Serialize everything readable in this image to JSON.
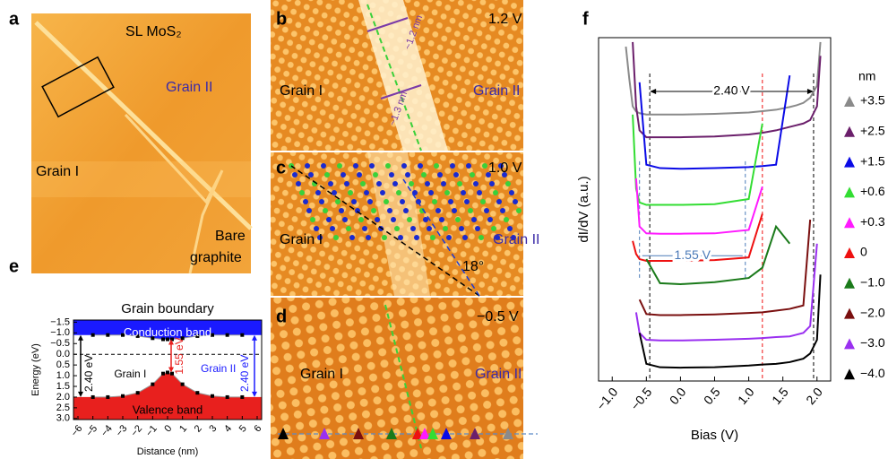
{
  "panels": {
    "a": {
      "label": "a",
      "material": "SL MoS₂",
      "grain2": "Grain II",
      "grain1": "Grain I",
      "bare": [
        "Bare",
        "graphite"
      ]
    },
    "b": {
      "label": "b",
      "bias": "1.2 V",
      "grain1": "Grain I",
      "grain2": "Grain II",
      "width1": "~1.2 nm",
      "width2": "~1.3 nm"
    },
    "c": {
      "label": "c",
      "bias": "1.0 V",
      "grain1": "Grain I",
      "grain2": "Grain II",
      "angle": "18°"
    },
    "d": {
      "label": "d",
      "bias": "−0.5 V",
      "grain1": "Grain I",
      "grain2": "Grain II"
    },
    "e": {
      "label": "e"
    },
    "f": {
      "label": "f"
    }
  },
  "chart_data": [
    {
      "type": "area",
      "title": "Grain boundary",
      "xlabel": "Distance (nm)",
      "ylabel": "Energy (eV)",
      "x": [
        -5,
        -4,
        -3,
        -2,
        -1,
        -0.3,
        0,
        0.3,
        1,
        2,
        3,
        4,
        5
      ],
      "series": [
        {
          "name": "Conduction band",
          "color": "#1a1aff",
          "values": [
            -0.9,
            -0.9,
            -0.9,
            -0.85,
            -0.75,
            -0.7,
            -0.7,
            -0.7,
            -0.75,
            -0.85,
            -0.9,
            -0.9,
            -0.9
          ]
        },
        {
          "name": "Valence band",
          "color": "#e8201e",
          "values": [
            2.0,
            2.0,
            1.95,
            1.8,
            1.4,
            0.9,
            0.85,
            0.9,
            1.4,
            1.8,
            1.95,
            2.0,
            2.0
          ]
        }
      ],
      "xlim": [
        -6.3,
        6.3
      ],
      "ylim": [
        -1.6,
        3.05
      ],
      "y_inverted": true,
      "xticks": [
        {
          "value": -6,
          "label": "−6"
        },
        {
          "value": -5,
          "label": "−5"
        },
        {
          "value": -4,
          "label": "−4"
        },
        {
          "value": -3,
          "label": "−3"
        },
        {
          "value": -2,
          "label": "−2"
        },
        {
          "value": -1,
          "label": "−1"
        },
        0,
        1,
        2,
        3,
        4,
        5,
        6
      ],
      "yticks": [
        {
          "value": -1.5,
          "label": "−1.5"
        },
        {
          "value": -1.0,
          "label": "−1.0"
        },
        {
          "value": -0.5,
          "label": "−0.5"
        },
        {
          "value": 0,
          "label": "0.0"
        },
        0.5,
        {
          "value": 1.0,
          "label": "1.0"
        },
        1.5,
        {
          "value": 2.0,
          "label": "2.0"
        },
        2.5,
        {
          "value": 3.0,
          "label": "3.0"
        }
      ],
      "hline": 0,
      "annotations": {
        "grain1": "Grain I",
        "grain2": "Grain II",
        "gap": "2.40 eV",
        "gap_boundary": "1.55 eV"
      }
    },
    {
      "type": "line",
      "xlabel": "Bias (V)",
      "ylabel": "dI/dV (a.u.)",
      "legend_title": "nm",
      "x": [
        -0.8,
        -0.75,
        -0.7,
        -0.65,
        -0.6,
        -0.5,
        -0.3,
        0,
        0.5,
        1.0,
        1.2,
        1.4,
        1.6,
        1.7,
        1.8,
        1.9,
        2.0,
        2.05
      ],
      "series": [
        {
          "name": "+3.5",
          "color": "#8a8a8a",
          "values": [
            97.4,
            88,
            80,
            78.5,
            78,
            77.6,
            77.6,
            77.6,
            77.8,
            78.2,
            78.6,
            79,
            79.8,
            80.3,
            81,
            82.5,
            86,
            98.7
          ]
        },
        {
          "name": "+2.5",
          "color": "#6b1f6b",
          "values": [
            null,
            null,
            98.7,
            80,
            73,
            71,
            71,
            71,
            71.2,
            71.8,
            72.3,
            73,
            74,
            74.5,
            75,
            76,
            80,
            94.7
          ]
        },
        {
          "name": "+1.5",
          "color": "#0a0ae6",
          "values": [
            null,
            null,
            null,
            null,
            87,
            63,
            62,
            61.8,
            62,
            62.3,
            62.6,
            63,
            89,
            null,
            null,
            null,
            null,
            null
          ]
        },
        {
          "name": "+0.6",
          "color": "#33dd33",
          "values": [
            null,
            null,
            77.6,
            56,
            52,
            51.3,
            51.3,
            51.3,
            51.5,
            53,
            75,
            null,
            null,
            null,
            null,
            null,
            null,
            null
          ]
        },
        {
          "name": "+0.3",
          "color": "#ff1aff",
          "values": [
            null,
            null,
            null,
            59,
            45,
            43,
            42.9,
            42.9,
            43,
            44,
            56.6,
            null,
            null,
            null,
            null,
            null,
            null,
            null
          ]
        },
        {
          "name": "0",
          "color": "#ee1111",
          "values": [
            null,
            null,
            40.8,
            37,
            35.5,
            35,
            35,
            35,
            35.2,
            36,
            48.7,
            null,
            null,
            null,
            null,
            null,
            null,
            null
          ]
        },
        {
          "name": "−1.0",
          "color": "#1a7a1a",
          "values": [
            null,
            null,
            null,
            null,
            null,
            35.5,
            28.5,
            28.2,
            28.8,
            30,
            33,
            45,
            40,
            null,
            null,
            null,
            null,
            null
          ]
        },
        {
          "name": "−2.0",
          "color": "#7a0f0f",
          "values": [
            null,
            null,
            null,
            null,
            23.7,
            19.5,
            19.2,
            19.2,
            19.4,
            19.8,
            20,
            20.5,
            21,
            21.5,
            22,
            47,
            null,
            null
          ]
        },
        {
          "name": "−3.0",
          "color": "#9a30f0",
          "values": [
            null,
            null,
            null,
            20,
            14,
            12,
            11.8,
            11.8,
            12,
            12.3,
            12.5,
            12.8,
            13,
            13.5,
            14,
            16,
            40,
            null
          ]
        },
        {
          "name": "−4.0",
          "color": "#000000",
          "values": [
            null,
            null,
            null,
            null,
            14,
            5,
            4,
            3.9,
            4,
            4.5,
            4.8,
            5,
            5.5,
            6,
            6.5,
            8,
            12,
            31
          ]
        }
      ],
      "xlim": [
        -1.2,
        2.2
      ],
      "ylim": [
        0,
        100
      ],
      "xticks": [
        {
          "value": -1.0,
          "label": "−1.0"
        },
        {
          "value": -0.5,
          "label": "−0.5"
        },
        {
          "value": 0,
          "label": "0.0"
        },
        0.5,
        {
          "value": 1.0,
          "label": "1.0"
        },
        1.5,
        {
          "value": 2.0,
          "label": "2.0"
        }
      ],
      "vlines": [
        {
          "value": -0.45,
          "color": "#000000"
        },
        {
          "value": 1.95,
          "color": "#000000"
        },
        {
          "value": 1.2,
          "color": "#ee1111"
        },
        {
          "value": -0.6,
          "color": "#4a7ab8"
        },
        {
          "value": 0.95,
          "color": "#4a7ab8"
        }
      ],
      "annotations": {
        "gap": "2.40 V",
        "gap_boundary": "1.55 V"
      }
    }
  ]
}
